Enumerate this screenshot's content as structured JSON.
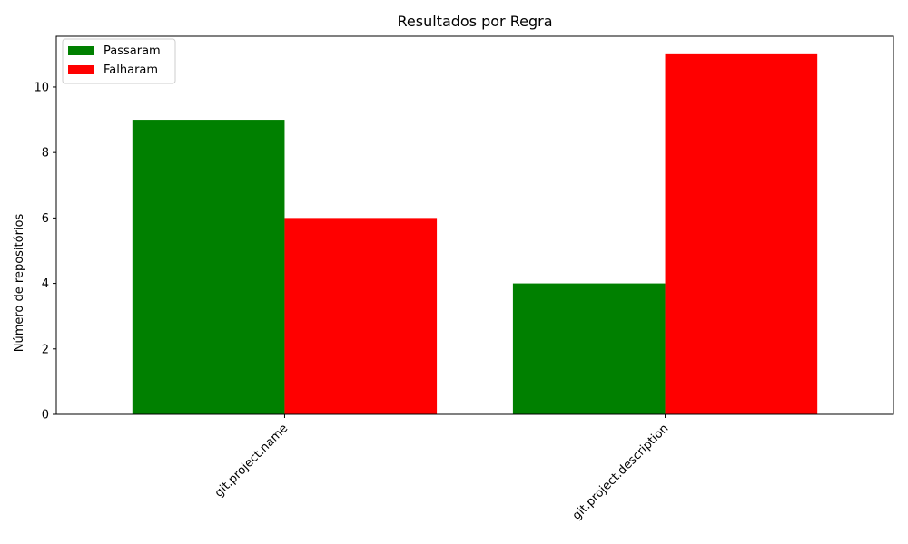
{
  "chart_data": {
    "type": "bar",
    "title": "Resultados por Regra",
    "xlabel": "",
    "ylabel": "Número de repositórios",
    "categories": [
      "git.project.name",
      "git.project.description"
    ],
    "series": [
      {
        "name": "Passaram",
        "values": [
          9,
          4
        ],
        "color": "#008000"
      },
      {
        "name": "Falharam",
        "values": [
          6,
          11
        ],
        "color": "#ff0000"
      }
    ],
    "ylim": [
      0,
      11.55
    ],
    "yticks": [
      0,
      2,
      4,
      6,
      8,
      10
    ],
    "legend_position": "top-left",
    "grid": false
  }
}
